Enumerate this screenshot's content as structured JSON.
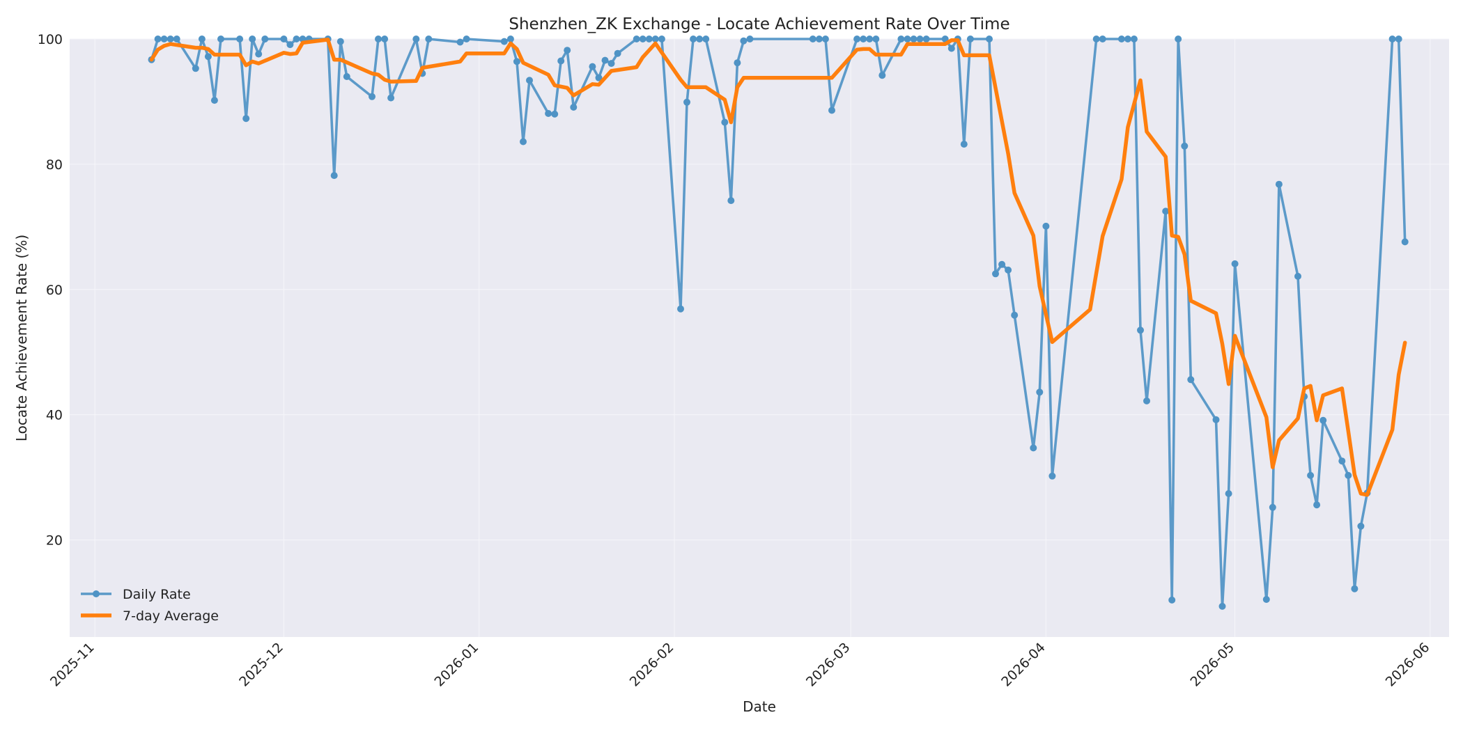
{
  "chart_data": {
    "type": "line",
    "title": "Shenzhen_ZK Exchange - Locate Achievement Rate Over Time",
    "xlabel": "Date",
    "ylabel": "Locate Achievement Rate (%)",
    "x_ticks": [
      "2025-11",
      "2025-12",
      "2026-01",
      "2026-02",
      "2026-03",
      "2026-04",
      "2026-05",
      "2026-06"
    ],
    "y_ticks": [
      "20",
      "40",
      "60",
      "80",
      "100"
    ],
    "xlim": [
      "2025-10-28",
      "2026-06-04"
    ],
    "ylim": [
      4.5,
      100
    ],
    "grid": true,
    "legend_position": "lower-left",
    "series": [
      {
        "name": "Daily Rate",
        "color": "#4f93c5",
        "marker": "circle",
        "points": [
          [
            "2025-11-10",
            96.7
          ],
          [
            "2025-11-11",
            100
          ],
          [
            "2025-11-12",
            100
          ],
          [
            "2025-11-13",
            100
          ],
          [
            "2025-11-14",
            100
          ],
          [
            "2025-11-17",
            95.3
          ],
          [
            "2025-11-18",
            100
          ],
          [
            "2025-11-19",
            97.2
          ],
          [
            "2025-11-20",
            90.2
          ],
          [
            "2025-11-21",
            100
          ],
          [
            "2025-11-24",
            100
          ],
          [
            "2025-11-25",
            87.3
          ],
          [
            "2025-11-26",
            100
          ],
          [
            "2025-11-27",
            97.6
          ],
          [
            "2025-11-28",
            100
          ],
          [
            "2025-12-01",
            100
          ],
          [
            "2025-12-02",
            99.1
          ],
          [
            "2025-12-03",
            100
          ],
          [
            "2025-12-04",
            100
          ],
          [
            "2025-12-05",
            100
          ],
          [
            "2025-12-08",
            100
          ],
          [
            "2025-12-09",
            78.2
          ],
          [
            "2025-12-10",
            99.6
          ],
          [
            "2025-12-11",
            94
          ],
          [
            "2025-12-15",
            90.8
          ],
          [
            "2025-12-16",
            100
          ],
          [
            "2025-12-17",
            100
          ],
          [
            "2025-12-18",
            90.6
          ],
          [
            "2025-12-22",
            100
          ],
          [
            "2025-12-23",
            94.5
          ],
          [
            "2025-12-24",
            100
          ],
          [
            "2025-12-29",
            99.5
          ],
          [
            "2025-12-30",
            100
          ],
          [
            "2026-01-05",
            99.6
          ],
          [
            "2026-01-06",
            100
          ],
          [
            "2026-01-07",
            96.4
          ],
          [
            "2026-01-08",
            83.6
          ],
          [
            "2026-01-09",
            93.4
          ],
          [
            "2026-01-12",
            88.1
          ],
          [
            "2026-01-13",
            88
          ],
          [
            "2026-01-14",
            96.5
          ],
          [
            "2026-01-15",
            98.2
          ],
          [
            "2026-01-16",
            89.1
          ],
          [
            "2026-01-19",
            95.6
          ],
          [
            "2026-01-20",
            93.8
          ],
          [
            "2026-01-21",
            96.6
          ],
          [
            "2026-01-22",
            96.1
          ],
          [
            "2026-01-23",
            97.7
          ],
          [
            "2026-01-26",
            100
          ],
          [
            "2026-01-27",
            100
          ],
          [
            "2026-01-28",
            100
          ],
          [
            "2026-01-29",
            100
          ],
          [
            "2026-01-30",
            100
          ],
          [
            "2026-02-02",
            56.9
          ],
          [
            "2026-02-03",
            89.9
          ],
          [
            "2026-02-04",
            100
          ],
          [
            "2026-02-05",
            100
          ],
          [
            "2026-02-06",
            100
          ],
          [
            "2026-02-09",
            86.7
          ],
          [
            "2026-02-10",
            74.2
          ],
          [
            "2026-02-11",
            96.2
          ],
          [
            "2026-02-12",
            99.7
          ],
          [
            "2026-02-13",
            100
          ],
          [
            "2026-02-23",
            100
          ],
          [
            "2026-02-24",
            100
          ],
          [
            "2026-02-25",
            100
          ],
          [
            "2026-02-26",
            88.6
          ],
          [
            "2026-03-02",
            100
          ],
          [
            "2026-03-03",
            100
          ],
          [
            "2026-03-04",
            100
          ],
          [
            "2026-03-05",
            100
          ],
          [
            "2026-03-06",
            94.2
          ],
          [
            "2026-03-09",
            100
          ],
          [
            "2026-03-10",
            100
          ],
          [
            "2026-03-11",
            100
          ],
          [
            "2026-03-12",
            100
          ],
          [
            "2026-03-13",
            100
          ],
          [
            "2026-03-16",
            100
          ],
          [
            "2026-03-17",
            98.5
          ],
          [
            "2026-03-18",
            100
          ],
          [
            "2026-03-19",
            83.2
          ],
          [
            "2026-03-20",
            100
          ],
          [
            "2026-03-23",
            100
          ],
          [
            "2026-03-24",
            62.5
          ],
          [
            "2026-03-25",
            64
          ],
          [
            "2026-03-26",
            63.1
          ],
          [
            "2026-03-27",
            55.9
          ],
          [
            "2026-03-30",
            34.7
          ],
          [
            "2026-03-31",
            43.6
          ],
          [
            "2026-04-01",
            70.1
          ],
          [
            "2026-04-02",
            30.2
          ],
          [
            "2026-04-09",
            100
          ],
          [
            "2026-04-10",
            100
          ],
          [
            "2026-04-13",
            100
          ],
          [
            "2026-04-14",
            100
          ],
          [
            "2026-04-15",
            100
          ],
          [
            "2026-04-16",
            53.5
          ],
          [
            "2026-04-17",
            42.2
          ],
          [
            "2026-04-20",
            72.5
          ],
          [
            "2026-04-21",
            10.4
          ],
          [
            "2026-04-22",
            100
          ],
          [
            "2026-04-23",
            82.9
          ],
          [
            "2026-04-24",
            45.6
          ],
          [
            "2026-04-28",
            39.2
          ],
          [
            "2026-04-29",
            9.4
          ],
          [
            "2026-04-30",
            27.4
          ],
          [
            "2026-05-01",
            64.1
          ],
          [
            "2026-05-06",
            10.5
          ],
          [
            "2026-05-07",
            25.2
          ],
          [
            "2026-05-08",
            76.8
          ],
          [
            "2026-05-11",
            62.1
          ],
          [
            "2026-05-12",
            42.9
          ],
          [
            "2026-05-13",
            30.3
          ],
          [
            "2026-05-14",
            25.6
          ],
          [
            "2026-05-15",
            39.1
          ],
          [
            "2026-05-18",
            32.6
          ],
          [
            "2026-05-19",
            30.3
          ],
          [
            "2026-05-20",
            12.2
          ],
          [
            "2026-05-21",
            22.2
          ],
          [
            "2026-05-22",
            27.5
          ],
          [
            "2026-05-26",
            100
          ],
          [
            "2026-05-27",
            100
          ],
          [
            "2026-05-28",
            67.6
          ]
        ]
      },
      {
        "name": "7-day Average",
        "color": "#ff7f0e",
        "marker": "none",
        "points": [
          [
            "2025-11-10",
            96.7
          ],
          [
            "2025-11-11",
            98.3
          ],
          [
            "2025-11-12",
            98.9
          ],
          [
            "2025-11-13",
            99.2
          ],
          [
            "2025-11-17",
            98.6
          ],
          [
            "2025-11-18",
            98.6
          ],
          [
            "2025-11-19",
            98.4
          ],
          [
            "2025-11-20",
            97.5
          ],
          [
            "2025-11-24",
            97.5
          ],
          [
            "2025-11-25",
            95.8
          ],
          [
            "2025-11-26",
            96.4
          ],
          [
            "2025-11-27",
            96.1
          ],
          [
            "2025-12-01",
            97.8
          ],
          [
            "2025-12-02",
            97.6
          ],
          [
            "2025-12-03",
            97.7
          ],
          [
            "2025-12-04",
            99.4
          ],
          [
            "2025-12-08",
            99.9
          ],
          [
            "2025-12-09",
            96.7
          ],
          [
            "2025-12-10",
            96.7
          ],
          [
            "2025-12-15",
            94.5
          ],
          [
            "2025-12-16",
            94.3
          ],
          [
            "2025-12-17",
            93.5
          ],
          [
            "2025-12-18",
            93.2
          ],
          [
            "2025-12-22",
            93.3
          ],
          [
            "2025-12-23",
            95.4
          ],
          [
            "2025-12-29",
            96.4
          ],
          [
            "2025-12-30",
            97.7
          ],
          [
            "2026-01-05",
            97.7
          ],
          [
            "2026-01-06",
            99.3
          ],
          [
            "2026-01-07",
            98.4
          ],
          [
            "2026-01-08",
            96.2
          ],
          [
            "2026-01-12",
            94.3
          ],
          [
            "2026-01-13",
            92.6
          ],
          [
            "2026-01-15",
            92.2
          ],
          [
            "2026-01-16",
            91
          ],
          [
            "2026-01-19",
            92.8
          ],
          [
            "2026-01-20",
            92.7
          ],
          [
            "2026-01-22",
            94.9
          ],
          [
            "2026-01-26",
            95.5
          ],
          [
            "2026-01-27",
            97.1
          ],
          [
            "2026-01-29",
            99.3
          ],
          [
            "2026-02-02",
            93.5
          ],
          [
            "2026-02-03",
            92.3
          ],
          [
            "2026-02-06",
            92.3
          ],
          [
            "2026-02-09",
            90.3
          ],
          [
            "2026-02-10",
            86.7
          ],
          [
            "2026-02-11",
            92.3
          ],
          [
            "2026-02-12",
            93.8
          ],
          [
            "2026-02-26",
            93.8
          ],
          [
            "2026-03-02",
            98.3
          ],
          [
            "2026-03-03",
            98.4
          ],
          [
            "2026-03-04",
            98.4
          ],
          [
            "2026-03-05",
            97.5
          ],
          [
            "2026-03-09",
            97.5
          ],
          [
            "2026-03-10",
            99.2
          ],
          [
            "2026-03-16",
            99.2
          ],
          [
            "2026-03-17",
            99.8
          ],
          [
            "2026-03-18",
            99.8
          ],
          [
            "2026-03-19",
            97.4
          ],
          [
            "2026-03-23",
            97.4
          ],
          [
            "2026-03-26",
            81.7
          ],
          [
            "2026-03-27",
            75.4
          ],
          [
            "2026-03-30",
            68.6
          ],
          [
            "2026-03-31",
            60.5
          ],
          [
            "2026-04-02",
            51.6
          ],
          [
            "2026-04-08",
            56.8
          ],
          [
            "2026-04-10",
            68.5
          ],
          [
            "2026-04-13",
            77.6
          ],
          [
            "2026-04-14",
            85.9
          ],
          [
            "2026-04-16",
            93.4
          ],
          [
            "2026-04-17",
            85.2
          ],
          [
            "2026-04-20",
            81.2
          ],
          [
            "2026-04-21",
            68.6
          ],
          [
            "2026-04-22",
            68.4
          ],
          [
            "2026-04-23",
            65.6
          ],
          [
            "2026-04-24",
            58.2
          ],
          [
            "2026-04-28",
            56.2
          ],
          [
            "2026-04-29",
            51.3
          ],
          [
            "2026-04-30",
            44.9
          ],
          [
            "2026-05-01",
            52.6
          ],
          [
            "2026-05-06",
            39.6
          ],
          [
            "2026-05-07",
            31.6
          ],
          [
            "2026-05-08",
            35.9
          ],
          [
            "2026-05-11",
            39.4
          ],
          [
            "2026-05-12",
            44.2
          ],
          [
            "2026-05-13",
            44.6
          ],
          [
            "2026-05-14",
            39.1
          ],
          [
            "2026-05-15",
            43.1
          ],
          [
            "2026-05-18",
            44.2
          ],
          [
            "2026-05-19",
            37.4
          ],
          [
            "2026-05-20",
            30.4
          ],
          [
            "2026-05-21",
            27.4
          ],
          [
            "2026-05-22",
            27.2
          ],
          [
            "2026-05-26",
            37.6
          ],
          [
            "2026-05-27",
            46.4
          ],
          [
            "2026-05-28",
            51.5
          ]
        ]
      }
    ]
  }
}
